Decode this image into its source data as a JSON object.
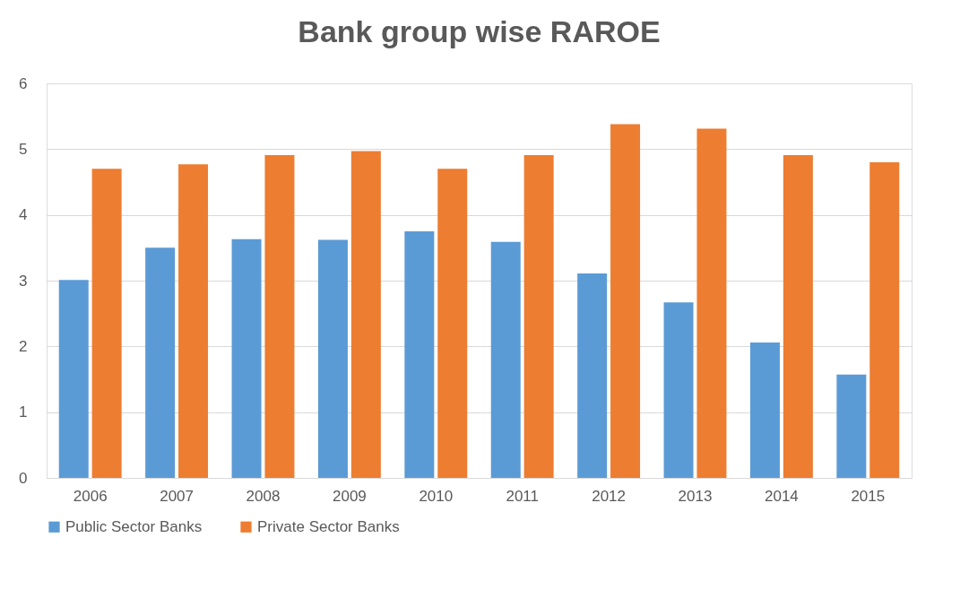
{
  "chart_data": {
    "type": "bar",
    "title": "Bank group wise RAROE",
    "categories": [
      "2006",
      "2007",
      "2008",
      "2009",
      "2010",
      "2011",
      "2012",
      "2013",
      "2014",
      "2015"
    ],
    "series": [
      {
        "name": "Public Sector Banks",
        "color": "#5b9bd5",
        "values": [
          3.01,
          3.5,
          3.63,
          3.62,
          3.75,
          3.59,
          3.11,
          2.67,
          2.06,
          1.57
        ]
      },
      {
        "name": "Private Sector Banks",
        "color": "#ed7d31",
        "values": [
          4.7,
          4.77,
          4.91,
          4.97,
          4.7,
          4.91,
          5.38,
          5.31,
          4.91,
          4.8
        ]
      }
    ],
    "ylim": [
      0,
      6
    ],
    "yticks": [
      0,
      1,
      2,
      3,
      4,
      5,
      6
    ],
    "grid": "y",
    "legend": "bottom"
  }
}
